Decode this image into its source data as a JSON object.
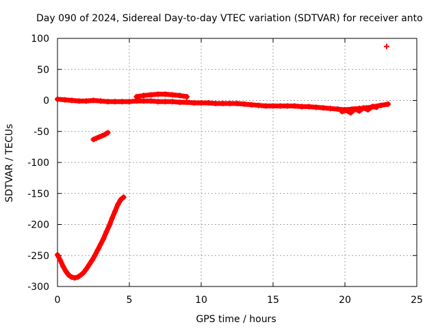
{
  "chart_data": {
    "type": "scatter",
    "title": "Day 090 of 2024, Sidereal Day-to-day VTEC variation (SDTVAR) for receiver anto",
    "xlabel": "GPS time / hours",
    "ylabel": "SDTVAR / TECUs",
    "xlim": [
      0,
      25
    ],
    "ylim": [
      -300,
      100
    ],
    "xticks": [
      0,
      5,
      10,
      15,
      20,
      25
    ],
    "yticks": [
      100,
      50,
      0,
      -50,
      -100,
      -150,
      -200,
      -250,
      -300
    ],
    "grid": true,
    "legend": "none",
    "marker": "+",
    "color": "#ff0000",
    "series": [
      {
        "name": "main-trace",
        "x": [
          0,
          0.5,
          1,
          1.5,
          2,
          2.5,
          3,
          3.5,
          4,
          4.5,
          5,
          5.5,
          6,
          6.5,
          7,
          7.5,
          8,
          8.5,
          9,
          9.5,
          10,
          10.5,
          11,
          11.5,
          12,
          12.5,
          13,
          13.5,
          14,
          14.5,
          15,
          15.5,
          16,
          16.5,
          17,
          17.5,
          18,
          18.5,
          19,
          19.5,
          20,
          20.5,
          21,
          21.5,
          22,
          22.5,
          23
        ],
        "y": [
          2,
          1,
          0,
          -1,
          -1,
          0,
          -1,
          -2,
          -2,
          -2,
          -2,
          -1,
          -1,
          -1,
          -2,
          -2,
          -2,
          -3,
          -3,
          -4,
          -4,
          -4,
          -5,
          -5,
          -5,
          -5,
          -6,
          -7,
          -8,
          -9,
          -9,
          -9,
          -9,
          -9,
          -10,
          -10,
          -11,
          -12,
          -13,
          -14,
          -15,
          -14,
          -13,
          -12,
          -10,
          -8,
          -6
        ]
      },
      {
        "name": "arc-trace",
        "x": [
          5.5,
          6,
          6.5,
          7,
          7.5,
          8,
          8.5,
          9
        ],
        "y": [
          6,
          8,
          9,
          10,
          10,
          9,
          8,
          6
        ]
      },
      {
        "name": "scatter-tail",
        "x": [
          19.8,
          20.1,
          20.4,
          20.7,
          21.0,
          21.3,
          21.6,
          21.9,
          22.2
        ],
        "y": [
          -18,
          -16,
          -20,
          -14,
          -17,
          -12,
          -15,
          -10,
          -11
        ]
      },
      {
        "name": "short-segment",
        "x": [
          2.5,
          2.7,
          2.9,
          3.1,
          3.3,
          3.5
        ],
        "y": [
          -63,
          -61,
          -59,
          -57,
          -55,
          -52
        ]
      },
      {
        "name": "deep-curve",
        "x": [
          0,
          0.2,
          0.4,
          0.6,
          0.8,
          1.0,
          1.2,
          1.4,
          1.6,
          1.8,
          2.0,
          2.2,
          2.4,
          2.6,
          2.8,
          3.0,
          3.2,
          3.4,
          3.6,
          3.8,
          4.0,
          4.2,
          4.4,
          4.6
        ],
        "y": [
          -249,
          -258,
          -268,
          -276,
          -282,
          -285,
          -286,
          -285,
          -282,
          -278,
          -272,
          -265,
          -258,
          -250,
          -241,
          -232,
          -223,
          -212,
          -202,
          -190,
          -179,
          -168,
          -160,
          -156
        ]
      },
      {
        "name": "outlier",
        "x": [
          22.9
        ],
        "y": [
          87
        ]
      }
    ]
  }
}
